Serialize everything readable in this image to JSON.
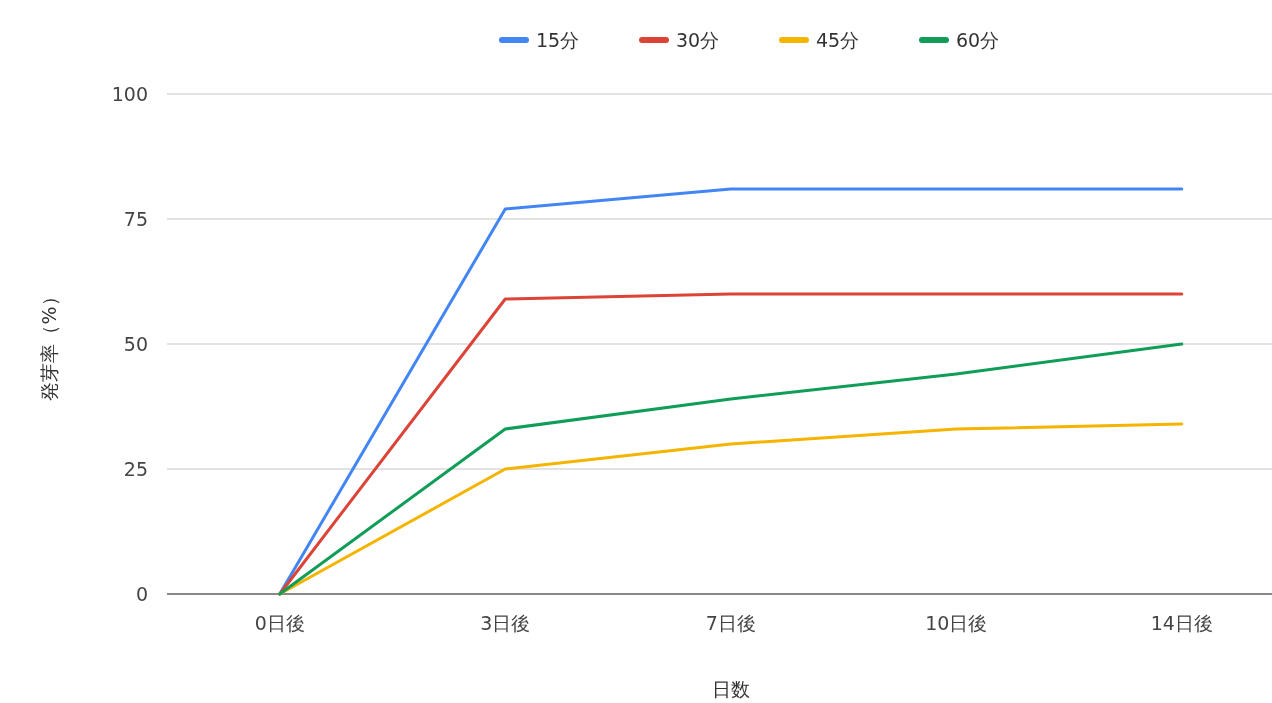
{
  "chart_data": {
    "type": "line",
    "xlabel": "日数",
    "ylabel": "発芽率（%）",
    "categories": [
      "0日後",
      "3日後",
      "7日後",
      "10日後",
      "14日後"
    ],
    "series": [
      {
        "name": "15分",
        "color": "#4285f4",
        "values": [
          0,
          77,
          81,
          81,
          81
        ]
      },
      {
        "name": "30分",
        "color": "#db4437",
        "values": [
          0,
          59,
          60,
          60,
          60
        ]
      },
      {
        "name": "45分",
        "color": "#f4b400",
        "values": [
          0,
          25,
          30,
          33,
          34
        ]
      },
      {
        "name": "60分",
        "color": "#0f9d58",
        "values": [
          0,
          33,
          39,
          44,
          50
        ]
      }
    ],
    "ylim": [
      0,
      100
    ],
    "yticks": [
      0,
      25,
      50,
      75,
      100
    ],
    "grid": "y",
    "legend": "top",
    "marker": "none",
    "line_style": "solid"
  }
}
